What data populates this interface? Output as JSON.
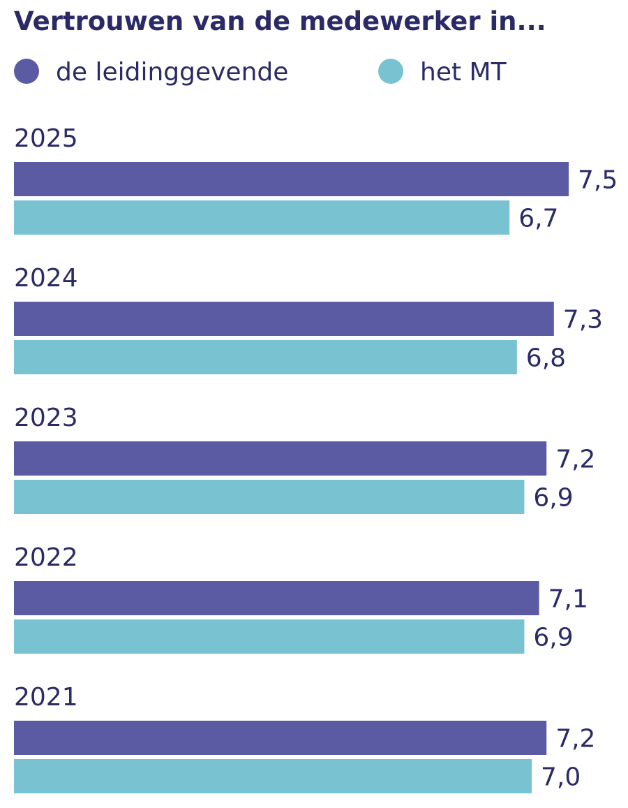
{
  "chart_data": {
    "type": "bar",
    "orientation": "horizontal",
    "title": "Vertrouwen van de medewerker in...",
    "xlabel": "",
    "ylabel": "",
    "grid": false,
    "legend_position": "top-left",
    "categories": [
      "2025",
      "2024",
      "2023",
      "2022",
      "2021"
    ],
    "series": [
      {
        "name": "de leidinggevende",
        "color": "#5a5ba2",
        "values": [
          7.5,
          7.3,
          7.2,
          7.1,
          7.2
        ],
        "labels": [
          "7,5",
          "7,3",
          "7,2",
          "7,1",
          "7,2"
        ]
      },
      {
        "name": "het MT",
        "color": "#79c2d2",
        "values": [
          6.7,
          6.8,
          6.9,
          6.9,
          7.0
        ],
        "labels": [
          "6,7",
          "6,8",
          "6,9",
          "6,9",
          "7,0"
        ]
      }
    ],
    "xlim": [
      0,
      7.5
    ]
  },
  "colors": {
    "text": "#2b2a66",
    "background": "#ffffff"
  }
}
